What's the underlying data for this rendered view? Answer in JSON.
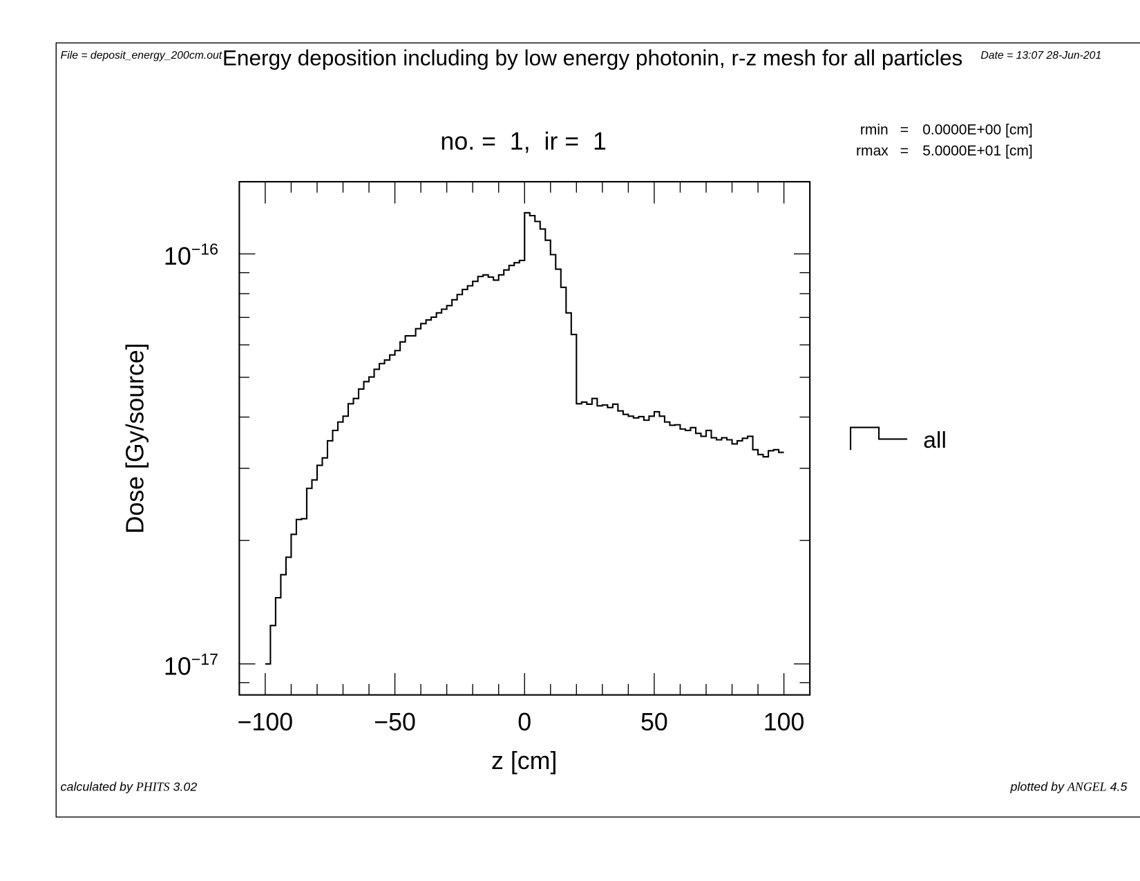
{
  "header": {
    "file": "File = deposit_energy_200cm.out",
    "title": "Energy deposition including by low energy photonin, r-z mesh for all particles",
    "date": "Date = 13:07 28-Jun-201"
  },
  "subtitle": "no. =  1,  ir =  1",
  "info": [
    {
      "label": "rmin",
      "eq": "=",
      "value": "0.0000E+00 [cm]"
    },
    {
      "label": "rmax",
      "eq": "=",
      "value": "5.0000E+01 [cm]"
    }
  ],
  "footer": {
    "left_prefix": "calculated by ",
    "left_logo": "PHITS",
    "left_version": " 3.02",
    "right_prefix": "plotted by ",
    "right_logo": "ANGEL",
    "right_version": " 4.5"
  },
  "chart_data": {
    "type": "line",
    "style": "histogram-step",
    "xlabel": "z [cm]",
    "ylabel": "Dose [Gy/source]",
    "xlim": [
      -110,
      110
    ],
    "ylim": [
      8.4e-18,
      1.5e-16
    ],
    "yscale": "log",
    "grid": false,
    "legend_placement": "right",
    "x_ticks": [
      "−100",
      "−50",
      "0",
      "50",
      "100"
    ],
    "x_tick_values": [
      -100,
      -50,
      0,
      50,
      100
    ],
    "y_ticks": [
      {
        "base": "10",
        "exp": "−16",
        "value": 1e-16
      },
      {
        "base": "10",
        "exp": "−17",
        "value": 1e-17
      }
    ],
    "line_color": "#000000",
    "series": [
      {
        "name": "all",
        "bin_edges_start": -100,
        "bin_width": 2,
        "values": [
          1e-17,
          1.24e-17,
          1.45e-17,
          1.65e-17,
          1.82e-17,
          2.07e-17,
          2.25e-17,
          2.26e-17,
          2.68e-17,
          2.81e-17,
          3.05e-17,
          3.18e-17,
          3.5e-17,
          3.71e-17,
          3.89e-17,
          4.02e-17,
          4.31e-17,
          4.44e-17,
          4.68e-17,
          4.88e-17,
          5.01e-17,
          5.23e-17,
          5.4e-17,
          5.51e-17,
          5.67e-17,
          5.81e-17,
          6.1e-17,
          6.31e-17,
          6.31e-17,
          6.57e-17,
          6.76e-17,
          6.9e-17,
          7.01e-17,
          7.18e-17,
          7.33e-17,
          7.48e-17,
          7.73e-17,
          7.96e-17,
          8.19e-17,
          8.36e-17,
          8.57e-17,
          8.81e-17,
          8.89e-17,
          8.78e-17,
          8.63e-17,
          8.89e-17,
          9.14e-17,
          9.37e-17,
          9.52e-17,
          9.64e-17,
          1.26e-16,
          1.24e-16,
          1.2e-16,
          1.15e-16,
          1.08e-16,
          9.96e-17,
          9.18e-17,
          8.29e-17,
          7.18e-17,
          6.36e-17,
          4.31e-17,
          4.35e-17,
          4.3e-17,
          4.44e-17,
          4.26e-17,
          4.28e-17,
          4.22e-17,
          4.3e-17,
          4.14e-17,
          4.06e-17,
          4.02e-17,
          3.98e-17,
          4.01e-17,
          3.93e-17,
          4.02e-17,
          4.12e-17,
          4.02e-17,
          3.89e-17,
          3.82e-17,
          3.83e-17,
          3.74e-17,
          3.71e-17,
          3.77e-17,
          3.65e-17,
          3.59e-17,
          3.71e-17,
          3.56e-17,
          3.52e-17,
          3.56e-17,
          3.52e-17,
          3.44e-17,
          3.5e-17,
          3.55e-17,
          3.59e-17,
          3.33e-17,
          3.24e-17,
          3.2e-17,
          3.31e-17,
          3.33e-17,
          3.28e-17
        ]
      }
    ]
  }
}
